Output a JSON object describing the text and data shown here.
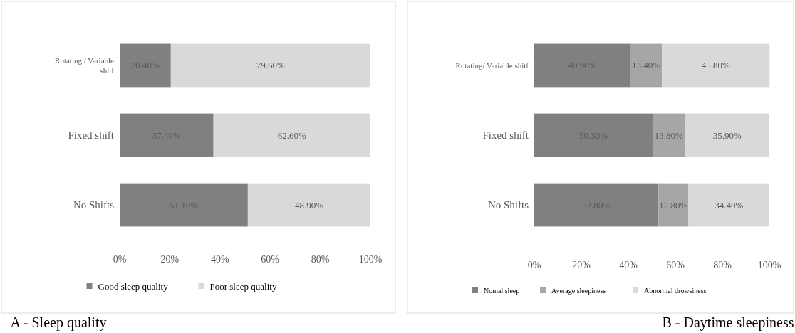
{
  "chart_data": [
    {
      "type": "bar",
      "orientation": "horizontal",
      "stacked": true,
      "title": "A - Sleep quality",
      "categories": [
        "Rotating / Variable shitf",
        "Fixed shift",
        "No Shifts"
      ],
      "xlim": [
        0,
        100
      ],
      "xticks": [
        {
          "value": 0,
          "label": "0%"
        },
        {
          "value": 20,
          "label": "20%"
        },
        {
          "value": 40,
          "label": "40%"
        },
        {
          "value": 60,
          "label": "60%"
        },
        {
          "value": 80,
          "label": "80%"
        },
        {
          "value": 100,
          "label": "100%"
        }
      ],
      "legend": "bottom",
      "series": [
        {
          "name": "Good sleep quality",
          "color": "#808080",
          "values": [
            20.4,
            37.4,
            51.1
          ],
          "value_labels": [
            "20.40%",
            "37.40%",
            "51.10%"
          ]
        },
        {
          "name": "Poor sleep quality",
          "color": "#d9d9d9",
          "values": [
            79.6,
            62.6,
            48.9
          ],
          "value_labels": [
            "79.60%",
            "62.60%",
            "48.90%"
          ]
        }
      ]
    },
    {
      "type": "bar",
      "orientation": "horizontal",
      "stacked": true,
      "title": "B - Daytime sleepiness",
      "categories": [
        "Rotating/ Variable shitf",
        "Fixed shift",
        "No Shifts"
      ],
      "xlim": [
        0,
        100
      ],
      "xticks": [
        {
          "value": 0,
          "label": "0%"
        },
        {
          "value": 20,
          "label": "20%"
        },
        {
          "value": 40,
          "label": "40%"
        },
        {
          "value": 60,
          "label": "60%"
        },
        {
          "value": 80,
          "label": "80%"
        },
        {
          "value": 100,
          "label": "100%"
        }
      ],
      "legend": "bottom",
      "series": [
        {
          "name": "Nomal sleep",
          "color": "#808080",
          "values": [
            40.9,
            50.3,
            52.8
          ],
          "value_labels": [
            "40.90%",
            "50.30%",
            "52.80%"
          ]
        },
        {
          "name": "Average sleepiness",
          "color": "#a6a6a6",
          "values": [
            13.4,
            13.8,
            12.8
          ],
          "value_labels": [
            "13.40%",
            "13.80%",
            "12.80%"
          ]
        },
        {
          "name": "Abnormal drowsiness",
          "color": "#d9d9d9",
          "values": [
            45.8,
            35.9,
            34.4
          ],
          "value_labels": [
            "45.80%",
            "35.90%",
            "34.40%"
          ]
        }
      ]
    }
  ]
}
